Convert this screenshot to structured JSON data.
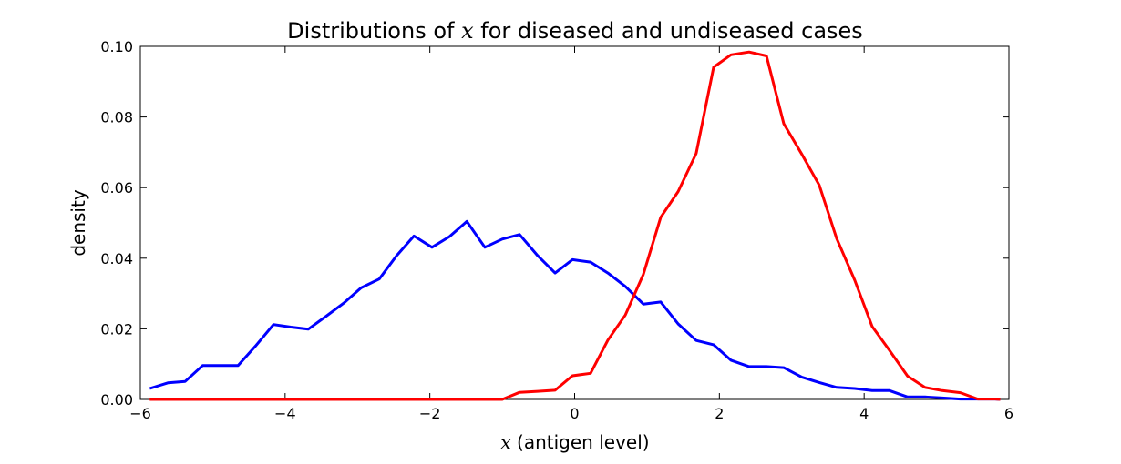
{
  "chart_data": {
    "type": "line",
    "title_prefix": "Distributions of ",
    "title_math": "x",
    "title_suffix": " for diseased and undiseased cases",
    "xlabel_math": "x",
    "xlabel_text": "  (antigen level)",
    "ylabel": "density",
    "xlim": [
      -6,
      6
    ],
    "ylim": [
      0,
      0.1
    ],
    "xticks": [
      -6,
      -4,
      -2,
      0,
      2,
      4,
      6
    ],
    "xtick_labels": [
      "−6",
      "−4",
      "−2",
      "0",
      "2",
      "4",
      "6"
    ],
    "yticks": [
      0,
      0.02,
      0.04,
      0.06,
      0.08,
      0.1
    ],
    "ytick_labels": [
      "0.00",
      "0.02",
      "0.04",
      "0.06",
      "0.08",
      "0.10"
    ],
    "series": [
      {
        "color": "#0000ff",
        "points": [
          [
            -5.87,
            0.0031
          ],
          [
            -5.62,
            0.0047
          ],
          [
            -5.38,
            0.0051
          ],
          [
            -5.14,
            0.0096
          ],
          [
            -4.89,
            0.0096
          ],
          [
            -4.65,
            0.0096
          ],
          [
            -4.41,
            0.0151
          ],
          [
            -4.16,
            0.0212
          ],
          [
            -3.92,
            0.0205
          ],
          [
            -3.68,
            0.0199
          ],
          [
            -3.43,
            0.0236
          ],
          [
            -3.19,
            0.0273
          ],
          [
            -2.95,
            0.0316
          ],
          [
            -2.7,
            0.0341
          ],
          [
            -2.46,
            0.0407
          ],
          [
            -2.22,
            0.0463
          ],
          [
            -1.97,
            0.0431
          ],
          [
            -1.73,
            0.0461
          ],
          [
            -1.49,
            0.0504
          ],
          [
            -1.24,
            0.0431
          ],
          [
            -1.0,
            0.0454
          ],
          [
            -0.76,
            0.0467
          ],
          [
            -0.51,
            0.0407
          ],
          [
            -0.27,
            0.0358
          ],
          [
            -0.03,
            0.0396
          ],
          [
            0.22,
            0.0389
          ],
          [
            0.46,
            0.0358
          ],
          [
            0.7,
            0.032
          ],
          [
            0.95,
            0.027
          ],
          [
            1.19,
            0.0276
          ],
          [
            1.43,
            0.0214
          ],
          [
            1.68,
            0.0167
          ],
          [
            1.92,
            0.0155
          ],
          [
            2.16,
            0.0111
          ],
          [
            2.41,
            0.0093
          ],
          [
            2.65,
            0.0093
          ],
          [
            2.89,
            0.009
          ],
          [
            3.14,
            0.0063
          ],
          [
            3.38,
            0.0048
          ],
          [
            3.62,
            0.0034
          ],
          [
            3.87,
            0.0031
          ],
          [
            4.11,
            0.0025
          ],
          [
            4.35,
            0.0025
          ],
          [
            4.6,
            0.0007
          ],
          [
            4.84,
            0.0007
          ],
          [
            5.08,
            0.0004
          ],
          [
            5.33,
            0.0001
          ],
          [
            5.57,
            0.0001
          ],
          [
            5.81,
            0.0001
          ],
          [
            5.88,
            0.0
          ]
        ]
      },
      {
        "color": "#ff0000",
        "points": [
          [
            -5.87,
            0.0
          ],
          [
            -1.0,
            0.0
          ],
          [
            -0.76,
            0.002
          ],
          [
            -0.51,
            0.0023
          ],
          [
            -0.27,
            0.0026
          ],
          [
            -0.03,
            0.0067
          ],
          [
            0.22,
            0.0074
          ],
          [
            0.46,
            0.0168
          ],
          [
            0.7,
            0.0239
          ],
          [
            0.95,
            0.0354
          ],
          [
            1.19,
            0.0516
          ],
          [
            1.43,
            0.0589
          ],
          [
            1.68,
            0.0697
          ],
          [
            1.92,
            0.0941
          ],
          [
            2.16,
            0.0976
          ],
          [
            2.41,
            0.0984
          ],
          [
            2.65,
            0.0973
          ],
          [
            2.89,
            0.0781
          ],
          [
            3.14,
            0.0694
          ],
          [
            3.38,
            0.0607
          ],
          [
            3.62,
            0.0456
          ],
          [
            3.87,
            0.0338
          ],
          [
            4.11,
            0.0207
          ],
          [
            4.35,
            0.0139
          ],
          [
            4.6,
            0.0066
          ],
          [
            4.84,
            0.0034
          ],
          [
            5.08,
            0.0025
          ],
          [
            5.33,
            0.0019
          ],
          [
            5.57,
            0.0001
          ],
          [
            5.81,
            0.0001
          ],
          [
            5.88,
            0.0
          ]
        ]
      }
    ]
  }
}
